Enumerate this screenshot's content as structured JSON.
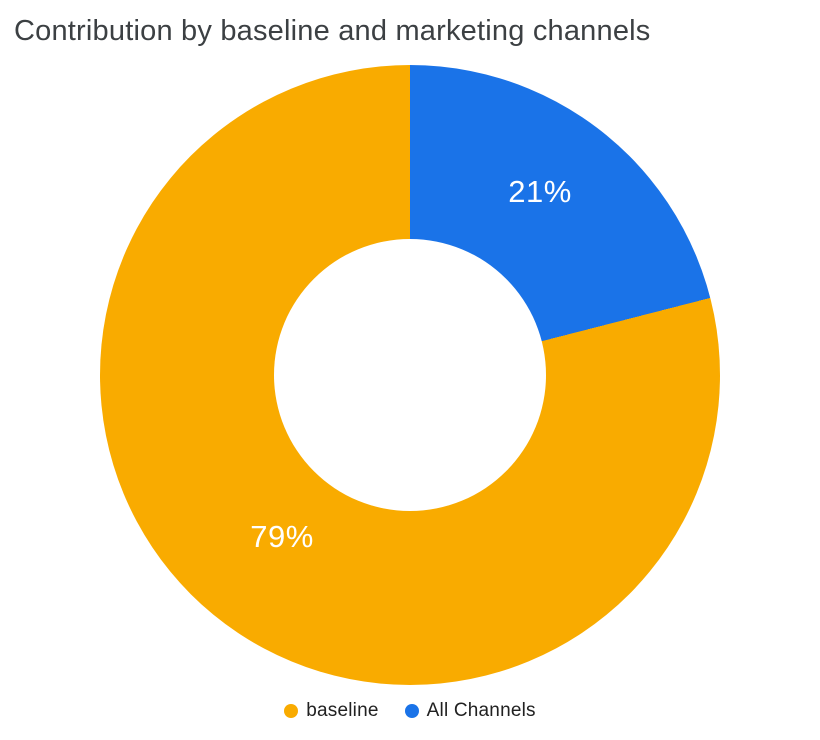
{
  "chart_data": {
    "type": "pie",
    "subtype": "donut",
    "title": "Contribution by baseline and marketing channels",
    "donut_hole_ratio": 0.44,
    "start_angle_deg": 0,
    "direction": "clockwise",
    "slices_clockwise_from_top": [
      {
        "label": "All Channels",
        "value": 21,
        "display": "21%",
        "color": "#1a73e8"
      },
      {
        "label": "baseline",
        "value": 79,
        "display": "79%",
        "color": "#f9ab00"
      }
    ],
    "legend": [
      {
        "label": "baseline",
        "color": "#f9ab00"
      },
      {
        "label": "All Channels",
        "color": "#1a73e8"
      }
    ],
    "legend_position": "bottom",
    "slice_label_color": "#ffffff",
    "title_color": "#3c4043",
    "background_color": "#ffffff"
  }
}
